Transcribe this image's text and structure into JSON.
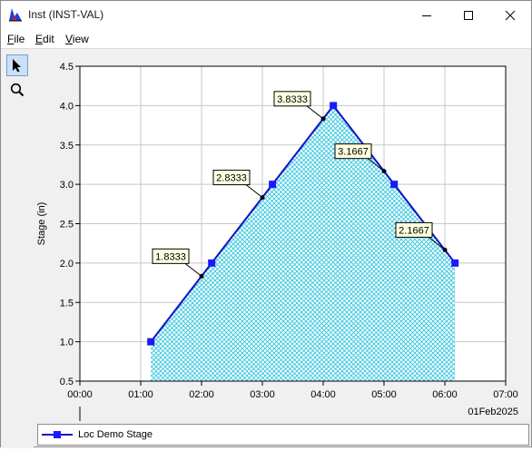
{
  "window": {
    "title": "Inst (INST-VAL)",
    "app_icon": "chart-icon"
  },
  "menu": {
    "items": [
      {
        "mnemonic": "F",
        "rest": "ile"
      },
      {
        "mnemonic": "E",
        "rest": "dit"
      },
      {
        "mnemonic": "V",
        "rest": "iew"
      }
    ]
  },
  "toolbar": {
    "tools": [
      {
        "icon": "pointer-arrow-icon",
        "active": true
      },
      {
        "icon": "zoom-magnifier-icon",
        "active": false
      }
    ]
  },
  "chart_data": {
    "type": "area",
    "ylabel": "Stage (in)",
    "xlabel": "",
    "date_label": "01Feb2025",
    "x_ticks": [
      "00:00",
      "01:00",
      "02:00",
      "03:00",
      "04:00",
      "05:00",
      "06:00",
      "07:00"
    ],
    "y_ticks": [
      "0.5",
      "1.0",
      "1.5",
      "2.0",
      "2.5",
      "3.0",
      "3.5",
      "4.0",
      "4.5"
    ],
    "xlim": [
      "00:00",
      "07:00"
    ],
    "ylim": [
      0.5,
      4.5
    ],
    "grid": true,
    "legend_position": "bottom",
    "fill_color": "#33c6e0",
    "line_color": "#1010c8",
    "marker_color": "#1a1aff",
    "series": [
      {
        "name": "Loc Demo Stage",
        "x": [
          "01:10",
          "02:10",
          "03:10",
          "04:10",
          "05:10",
          "06:10"
        ],
        "values": [
          1.0,
          2.0,
          3.0,
          4.0,
          3.0,
          2.0
        ]
      }
    ],
    "annotations": [
      {
        "x": "02:00",
        "y": 1.8333,
        "label": "1.8333"
      },
      {
        "x": "03:00",
        "y": 2.8333,
        "label": "2.8333"
      },
      {
        "x": "04:00",
        "y": 3.8333,
        "label": "3.8333"
      },
      {
        "x": "05:00",
        "y": 3.1667,
        "label": "3.1667"
      },
      {
        "x": "06:00",
        "y": 2.1667,
        "label": "2.1667"
      }
    ]
  }
}
